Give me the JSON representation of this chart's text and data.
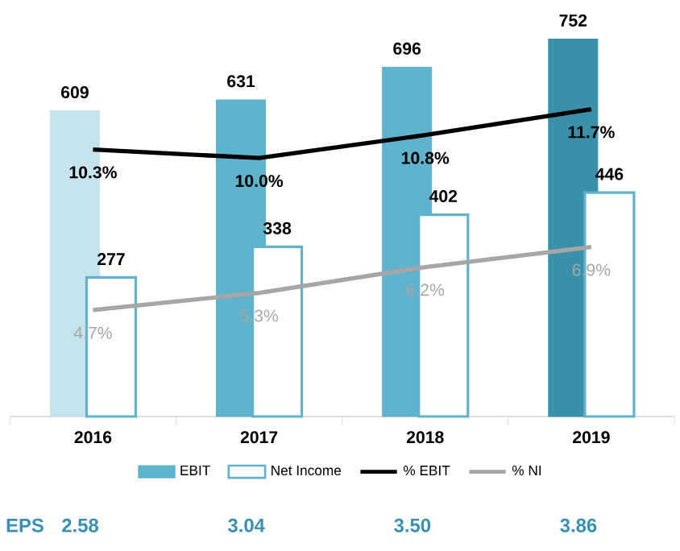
{
  "chart_data": {
    "type": "bar",
    "categories": [
      "2016",
      "2017",
      "2018",
      "2019"
    ],
    "legend": "bottom",
    "tick_labels": "x",
    "series": [
      {
        "name": "EBIT",
        "color": "#5fb3cc",
        "colors": [
          "#c5e3ec",
          "#5fb3cc",
          "#5fb3cc",
          "#3a90a8"
        ],
        "values": [
          609,
          631,
          696,
          752
        ],
        "value_labels": [
          "609",
          "631",
          "696",
          "752"
        ]
      },
      {
        "name": "Net Income",
        "color": "#5fb3cc",
        "values": [
          277,
          338,
          402,
          446
        ],
        "value_labels": [
          "277",
          "338",
          "402",
          "446"
        ]
      },
      {
        "name": "% EBIT",
        "type": "line",
        "axis": "y2",
        "color": "#000000",
        "values": [
          10.3,
          10.0,
          10.8,
          11.7
        ],
        "value_labels": [
          "10.3%",
          "10.0%",
          "10.8%",
          "11.7%"
        ]
      },
      {
        "name": "% NI",
        "type": "line",
        "axis": "y2",
        "color": "#a6a6a6",
        "values": [
          4.7,
          5.3,
          6.2,
          6.9
        ],
        "value_labels": [
          "4.7%",
          "5.3%",
          "6.2%",
          "6.9%"
        ]
      }
    ],
    "annotations": [
      "EPS",
      "2.58",
      "3.04",
      "3.50",
      "3.86"
    ]
  }
}
